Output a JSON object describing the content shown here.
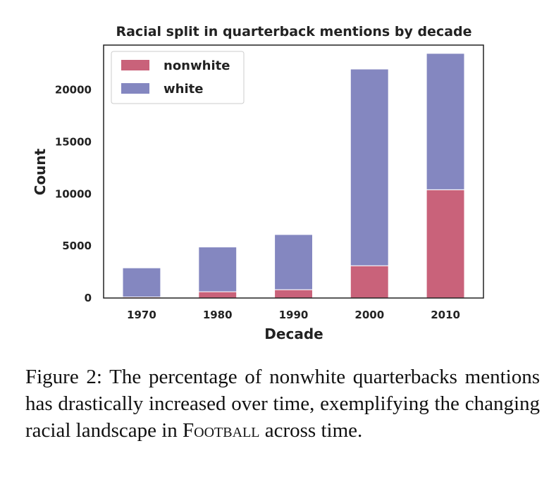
{
  "chart_data": {
    "type": "bar",
    "stacked": true,
    "title": "Racial split in quarterback mentions by decade",
    "xlabel": "Decade",
    "ylabel": "Count",
    "categories": [
      "1970",
      "1980",
      "1990",
      "2000",
      "2010"
    ],
    "series": [
      {
        "name": "nonwhite",
        "color": "#c9627a",
        "values": [
          100,
          600,
          800,
          3100,
          10400
        ]
      },
      {
        "name": "white",
        "color": "#8487c0",
        "values": [
          2800,
          4300,
          5300,
          18900,
          13100
        ]
      }
    ],
    "ylim": [
      0,
      24300
    ],
    "yticks": [
      0,
      5000,
      10000,
      15000,
      20000
    ],
    "grid": false,
    "legend_position": "top-left"
  },
  "caption": {
    "prefix": "Figure 2:  The percentage of nonwhite quarterbacks mentions has drastically increased over time, exemplifying the changing racial landscape in ",
    "smallcaps": "Football",
    "suffix": " across time."
  }
}
